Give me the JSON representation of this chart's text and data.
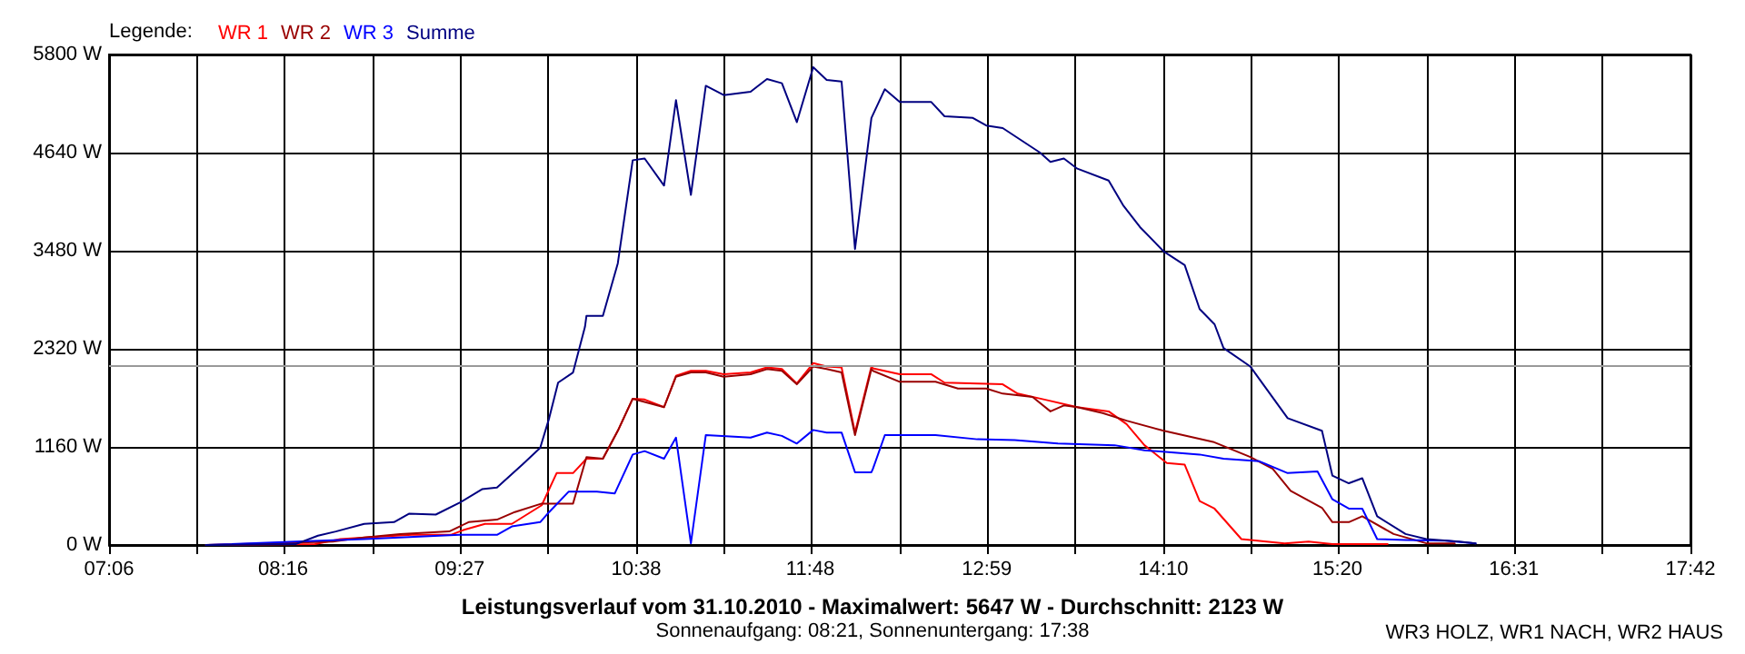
{
  "chart_data": {
    "type": "line",
    "title": "Leistungsverlauf vom 31.10.2010 - Maximalwert: 5647 W - Durchschnitt: 2123 W",
    "subtitle": "Sonnenaufgang: 08:21, Sonnenuntergang: 17:38",
    "legend_title": "Legende:",
    "annotations": [
      "WR3 HOLZ, WR1 NACH, WR2 HAUS"
    ],
    "series": [
      {
        "name": "WR 1",
        "color": "#ff0000",
        "x": [
          7.75,
          8.48,
          8.65,
          8.84,
          9.13,
          9.39,
          9.48,
          9.62,
          9.8,
          10.0,
          10.1,
          10.21,
          10.3,
          10.41,
          10.51,
          10.61,
          10.69,
          10.82,
          10.9,
          11.0,
          11.1,
          11.22,
          11.4,
          11.51,
          11.61,
          11.71,
          11.82,
          11.91,
          12.01,
          12.1,
          12.21,
          12.22,
          12.4,
          12.61,
          12.7,
          13.09,
          13.19,
          13.37,
          13.59,
          13.8,
          13.92,
          14.04,
          14.19,
          14.31,
          14.41,
          14.51,
          14.69,
          14.98,
          15.14,
          15.3,
          15.67
        ],
        "values": [
          0,
          10,
          70,
          90,
          120,
          120,
          180,
          250,
          250,
          470,
          850,
          850,
          1020,
          1020,
          1350,
          1730,
          1720,
          1630,
          2000,
          2060,
          2060,
          2020,
          2040,
          2100,
          2080,
          1910,
          2150,
          2110,
          2100,
          1330,
          2110,
          2090,
          2020,
          2020,
          1920,
          1900,
          1790,
          1720,
          1630,
          1580,
          1430,
          1180,
          970,
          950,
          520,
          430,
          70,
          20,
          40,
          10,
          10
        ]
      },
      {
        "name": "WR 2",
        "color": "#990000",
        "x": [
          7.75,
          8.6,
          8.81,
          9.05,
          9.38,
          9.51,
          9.7,
          9.82,
          10.0,
          10.21,
          10.3,
          10.41,
          10.51,
          10.61,
          10.82,
          10.9,
          11.0,
          11.1,
          11.22,
          11.4,
          11.51,
          11.61,
          11.71,
          11.82,
          11.91,
          12.01,
          12.1,
          12.21,
          12.22,
          12.4,
          12.64,
          12.79,
          12.98,
          13.09,
          13.29,
          13.41,
          13.5,
          13.59,
          13.76,
          13.92,
          14.17,
          14.5,
          14.75,
          14.9,
          15.02,
          15.23,
          15.3,
          15.41,
          15.5,
          15.71,
          15.93,
          16.12
        ],
        "values": [
          0,
          40,
          90,
          130,
          160,
          270,
          300,
          390,
          490,
          490,
          1040,
          1020,
          1350,
          1730,
          1630,
          1990,
          2040,
          2040,
          1990,
          2020,
          2080,
          2060,
          1900,
          2110,
          2080,
          2040,
          1300,
          2080,
          2060,
          1930,
          1930,
          1850,
          1850,
          1790,
          1750,
          1580,
          1650,
          1630,
          1560,
          1470,
          1350,
          1220,
          1040,
          900,
          640,
          440,
          270,
          270,
          340,
          130,
          20,
          20
        ]
      },
      {
        "name": "WR 3",
        "color": "#0000ff",
        "x": [
          7.75,
          8.35,
          8.81,
          9.45,
          9.7,
          9.8,
          9.99,
          10.05,
          10.18,
          10.37,
          10.49,
          10.61,
          10.69,
          10.82,
          10.9,
          11.0,
          11.1,
          11.4,
          11.51,
          11.61,
          11.71,
          11.82,
          11.91,
          12.01,
          12.1,
          12.21,
          12.22,
          12.3,
          12.64,
          12.92,
          13.17,
          13.46,
          13.84,
          14.04,
          14.41,
          14.57,
          14.81,
          15.0,
          15.2,
          15.3,
          15.41,
          15.5,
          15.6,
          15.79,
          16.06,
          16.26
        ],
        "values": [
          0,
          40,
          70,
          120,
          120,
          220,
          270,
          390,
          630,
          630,
          610,
          1070,
          1110,
          1020,
          1270,
          20,
          1300,
          1270,
          1330,
          1290,
          1200,
          1360,
          1330,
          1330,
          860,
          860,
          900,
          1300,
          1300,
          1250,
          1240,
          1200,
          1180,
          1120,
          1070,
          1020,
          990,
          850,
          870,
          540,
          430,
          430,
          70,
          60,
          50,
          20
        ]
      },
      {
        "name": "Summe",
        "color": "#000080",
        "x": [
          7.75,
          8.35,
          8.5,
          8.62,
          8.81,
          9.01,
          9.11,
          9.29,
          9.45,
          9.6,
          9.7,
          9.87,
          9.99,
          10.05,
          10.11,
          10.21,
          10.29,
          10.3,
          10.41,
          10.51,
          10.61,
          10.69,
          10.82,
          10.9,
          11.0,
          11.1,
          11.22,
          11.4,
          11.51,
          11.61,
          11.71,
          11.82,
          11.91,
          12.01,
          12.1,
          12.21,
          12.3,
          12.4,
          12.61,
          12.7,
          12.89,
          12.98,
          13.09,
          13.34,
          13.41,
          13.5,
          13.59,
          13.8,
          13.9,
          14.01,
          14.17,
          14.31,
          14.41,
          14.51,
          14.57,
          14.75,
          15.0,
          15.23,
          15.3,
          15.41,
          15.5,
          15.6,
          15.79,
          15.93,
          16.15,
          16.26
        ],
        "values": [
          0,
          10,
          110,
          160,
          250,
          270,
          370,
          360,
          500,
          660,
          680,
          950,
          1150,
          1500,
          1920,
          2040,
          2580,
          2710,
          2710,
          3330,
          4550,
          4570,
          4250,
          5260,
          4140,
          5430,
          5320,
          5360,
          5510,
          5460,
          5000,
          5650,
          5500,
          5480,
          3500,
          5050,
          5390,
          5240,
          5240,
          5070,
          5050,
          4960,
          4930,
          4640,
          4530,
          4570,
          4450,
          4310,
          4010,
          3760,
          3470,
          3310,
          2790,
          2610,
          2330,
          2110,
          1500,
          1350,
          820,
          730,
          790,
          340,
          130,
          70,
          40,
          20
        ]
      }
    ],
    "xlim": [
      7.1,
      17.7
    ],
    "xticks": [
      {
        "value": 7.1,
        "label": "07:06"
      },
      {
        "value": 7.6889,
        "label": null
      },
      {
        "value": 8.2667,
        "label": "08:16"
      },
      {
        "value": 8.8667,
        "label": null
      },
      {
        "value": 9.45,
        "label": "09:27"
      },
      {
        "value": 10.0444,
        "label": null
      },
      {
        "value": 10.6333,
        "label": "10:38"
      },
      {
        "value": 11.2222,
        "label": null
      },
      {
        "value": 11.8,
        "label": "11:48"
      },
      {
        "value": 12.4,
        "label": null
      },
      {
        "value": 12.9833,
        "label": "12:59"
      },
      {
        "value": 13.5778,
        "label": null
      },
      {
        "value": 14.1667,
        "label": "14:10"
      },
      {
        "value": 14.7556,
        "label": null
      },
      {
        "value": 15.3333,
        "label": "15:20"
      },
      {
        "value": 15.9333,
        "label": null
      },
      {
        "value": 16.5167,
        "label": "16:31"
      },
      {
        "value": 17.1111,
        "label": null
      },
      {
        "value": 17.7,
        "label": "17:42"
      }
    ],
    "ylim": [
      0,
      5800
    ],
    "yticks": [
      {
        "value": 0,
        "label": "0 W"
      },
      {
        "value": 1160,
        "label": "1160 W"
      },
      {
        "value": 2320,
        "label": "2320 W"
      },
      {
        "value": 3480,
        "label": "3480 W"
      },
      {
        "value": 4640,
        "label": "4640 W"
      },
      {
        "value": 5800,
        "label": "5800 W"
      }
    ],
    "ref_lines": [
      {
        "axis": "y",
        "value": 2123,
        "color": "#999999"
      }
    ],
    "grid": true,
    "legend": "top left",
    "marker": "none",
    "line_style": "solid"
  }
}
